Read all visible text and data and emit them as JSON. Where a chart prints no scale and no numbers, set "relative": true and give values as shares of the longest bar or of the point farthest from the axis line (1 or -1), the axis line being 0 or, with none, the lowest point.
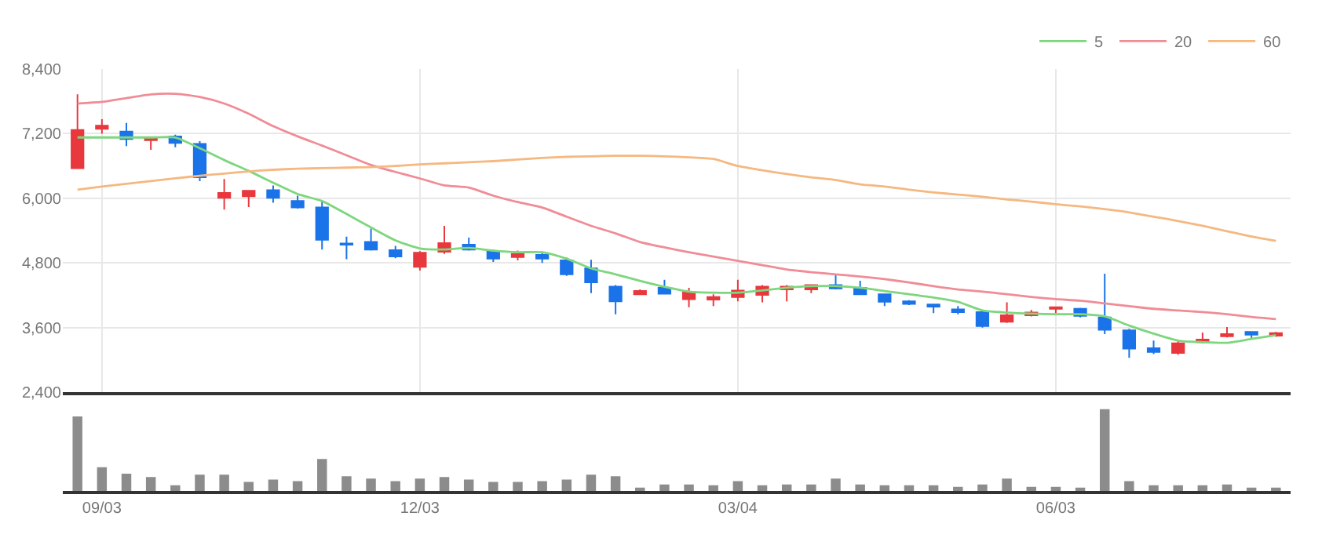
{
  "chart_data": [
    {
      "type": "candlestick",
      "ohlc": [
        [
          6560,
          7930,
          6560,
          7270
        ],
        [
          7290,
          7470,
          7200,
          7350
        ],
        [
          7240,
          7400,
          6970,
          7100
        ],
        [
          7080,
          7130,
          6900,
          7130
        ],
        [
          7150,
          7180,
          6950,
          7030
        ],
        [
          7010,
          7060,
          6320,
          6390
        ],
        [
          6010,
          6360,
          5790,
          6100
        ],
        [
          6040,
          6140,
          5840,
          6140
        ],
        [
          6150,
          6240,
          5920,
          6010
        ],
        [
          5950,
          6050,
          5810,
          5830
        ],
        [
          5830,
          5970,
          5050,
          5230
        ],
        [
          5160,
          5290,
          4870,
          5140
        ],
        [
          5190,
          5440,
          5030,
          5050
        ],
        [
          5040,
          5120,
          4890,
          4920
        ],
        [
          4730,
          5020,
          4660,
          4990
        ],
        [
          5010,
          5490,
          4970,
          5170
        ],
        [
          5140,
          5270,
          5030,
          5050
        ],
        [
          5010,
          5050,
          4820,
          4880
        ],
        [
          4910,
          5030,
          4850,
          4970
        ],
        [
          4950,
          5010,
          4800,
          4880
        ],
        [
          4850,
          4900,
          4560,
          4590
        ],
        [
          4700,
          4860,
          4240,
          4440
        ],
        [
          4360,
          4390,
          3850,
          4090
        ],
        [
          4220,
          4310,
          4210,
          4280
        ],
        [
          4340,
          4490,
          4230,
          4230
        ],
        [
          4130,
          4340,
          3980,
          4260
        ],
        [
          4120,
          4220,
          4000,
          4170
        ],
        [
          4170,
          4490,
          4090,
          4290
        ],
        [
          4210,
          4390,
          4070,
          4360
        ],
        [
          4310,
          4390,
          4090,
          4360
        ],
        [
          4310,
          4390,
          4240,
          4390
        ],
        [
          4390,
          4590,
          4310,
          4330
        ],
        [
          4340,
          4470,
          4210,
          4220
        ],
        [
          4220,
          4220,
          4000,
          4080
        ],
        [
          4090,
          4110,
          4020,
          4040
        ],
        [
          4030,
          4030,
          3870,
          3990
        ],
        [
          3940,
          4000,
          3850,
          3890
        ],
        [
          3890,
          3890,
          3600,
          3630
        ],
        [
          3710,
          4070,
          3690,
          3830
        ],
        [
          3830,
          3930,
          3810,
          3880
        ],
        [
          3950,
          3980,
          3870,
          3980
        ],
        [
          3950,
          3970,
          3790,
          3820
        ],
        [
          3790,
          4600,
          3480,
          3560
        ],
        [
          3550,
          3580,
          3040,
          3210
        ],
        [
          3220,
          3360,
          3110,
          3150
        ],
        [
          3130,
          3360,
          3100,
          3310
        ],
        [
          3330,
          3510,
          3310,
          3380
        ],
        [
          3440,
          3610,
          3420,
          3480
        ],
        [
          3520,
          3520,
          3390,
          3470
        ],
        [
          3450,
          3520,
          3430,
          3500
        ]
      ],
      "colors": [
        "#e8383d",
        "#e8383d",
        "#1a73e8",
        "#e8383d",
        "#1a73e8",
        "#1a73e8",
        "#e8383d",
        "#e8383d",
        "#1a73e8",
        "#1a73e8",
        "#1a73e8",
        "#1a73e8",
        "#1a73e8",
        "#1a73e8",
        "#e8383d",
        "#e8383d",
        "#1a73e8",
        "#1a73e8",
        "#e8383d",
        "#1a73e8",
        "#1a73e8",
        "#1a73e8",
        "#1a73e8",
        "#e8383d",
        "#1a73e8",
        "#e8383d",
        "#e8383d",
        "#e8383d",
        "#e8383d",
        "#e8383d",
        "#e8383d",
        "#1a73e8",
        "#1a73e8",
        "#1a73e8",
        "#1a73e8",
        "#1a73e8",
        "#1a73e8",
        "#1a73e8",
        "#e8383d",
        "#e8383d",
        "#e8383d",
        "#1a73e8",
        "#1a73e8",
        "#1a73e8",
        "#1a73e8",
        "#e8383d",
        "#e8383d",
        "#e8383d",
        "#1a73e8",
        "#e8383d"
      ],
      "series": [
        {
          "type": "line",
          "name": "5",
          "color": "#7ed67e",
          "values": [
            7130,
            7130,
            7130,
            7130,
            7130,
            6930,
            6710,
            6510,
            6290,
            6080,
            5950,
            5710,
            5460,
            5220,
            5070,
            5050,
            5080,
            5030,
            5000,
            5000,
            4880,
            4700,
            4590,
            4470,
            4360,
            4270,
            4250,
            4250,
            4290,
            4340,
            4370,
            4370,
            4340,
            4280,
            4220,
            4160,
            4080,
            3920,
            3880,
            3860,
            3850,
            3850,
            3810,
            3640,
            3490,
            3360,
            3330,
            3320,
            3390,
            3460
          ]
        },
        {
          "type": "line",
          "name": "20",
          "color": "#f08c96",
          "values": [
            7760,
            7790,
            7860,
            7930,
            7940,
            7880,
            7760,
            7570,
            7340,
            7150,
            6980,
            6800,
            6620,
            6490,
            6370,
            6240,
            6200,
            6050,
            5930,
            5830,
            5660,
            5490,
            5350,
            5190,
            5090,
            5000,
            4920,
            4840,
            4760,
            4680,
            4630,
            4590,
            4550,
            4500,
            4440,
            4370,
            4310,
            4270,
            4220,
            4170,
            4130,
            4100,
            4050,
            4000,
            3950,
            3920,
            3890,
            3850,
            3800,
            3760
          ]
        },
        {
          "type": "line",
          "name": "60",
          "color": "#f5b880",
          "values": [
            6160,
            6220,
            6270,
            6320,
            6370,
            6420,
            6460,
            6500,
            6530,
            6550,
            6560,
            6570,
            6580,
            6600,
            6630,
            6650,
            6670,
            6690,
            6720,
            6750,
            6770,
            6780,
            6790,
            6790,
            6780,
            6760,
            6730,
            6600,
            6520,
            6450,
            6390,
            6340,
            6260,
            6220,
            6160,
            6110,
            6070,
            6030,
            5980,
            5940,
            5890,
            5850,
            5800,
            5740,
            5660,
            5580,
            5490,
            5390,
            5290,
            5210
          ]
        }
      ],
      "ylim": [
        2400,
        8400
      ],
      "yticks": [
        {
          "value": 2400,
          "label": "2,400"
        },
        {
          "value": 3600,
          "label": "3,600"
        },
        {
          "value": 4800,
          "label": "4,800"
        },
        {
          "value": 6000,
          "label": "6,000"
        },
        {
          "value": 7200,
          "label": "7,200"
        },
        {
          "value": 8400,
          "label": "8,400"
        }
      ],
      "grid": true,
      "legend": "top right",
      "marker": "none",
      "tick_labels": "y"
    },
    {
      "type": "bar",
      "relative": true,
      "categories": [
        null,
        "09/03",
        null,
        null,
        null,
        null,
        null,
        null,
        null,
        null,
        null,
        null,
        null,
        null,
        "12/03",
        null,
        null,
        null,
        null,
        null,
        null,
        null,
        null,
        null,
        null,
        null,
        null,
        "03/04",
        null,
        null,
        null,
        null,
        null,
        null,
        null,
        null,
        null,
        null,
        null,
        null,
        "06/03",
        null,
        null,
        null,
        null,
        null,
        null,
        null,
        null,
        null
      ],
      "color": "#8c8c8c",
      "values": [
        0.91,
        0.29,
        0.21,
        0.17,
        0.07,
        0.2,
        0.2,
        0.11,
        0.14,
        0.12,
        0.39,
        0.18,
        0.15,
        0.12,
        0.15,
        0.17,
        0.14,
        0.11,
        0.11,
        0.12,
        0.14,
        0.2,
        0.18,
        0.04,
        0.08,
        0.08,
        0.07,
        0.12,
        0.07,
        0.08,
        0.08,
        0.15,
        0.08,
        0.07,
        0.07,
        0.07,
        0.05,
        0.08,
        0.15,
        0.05,
        0.05,
        0.04,
        1,
        0.12,
        0.07,
        0.07,
        0.07,
        0.08,
        0.04,
        0.04
      ],
      "tick_labels": "x"
    }
  ]
}
